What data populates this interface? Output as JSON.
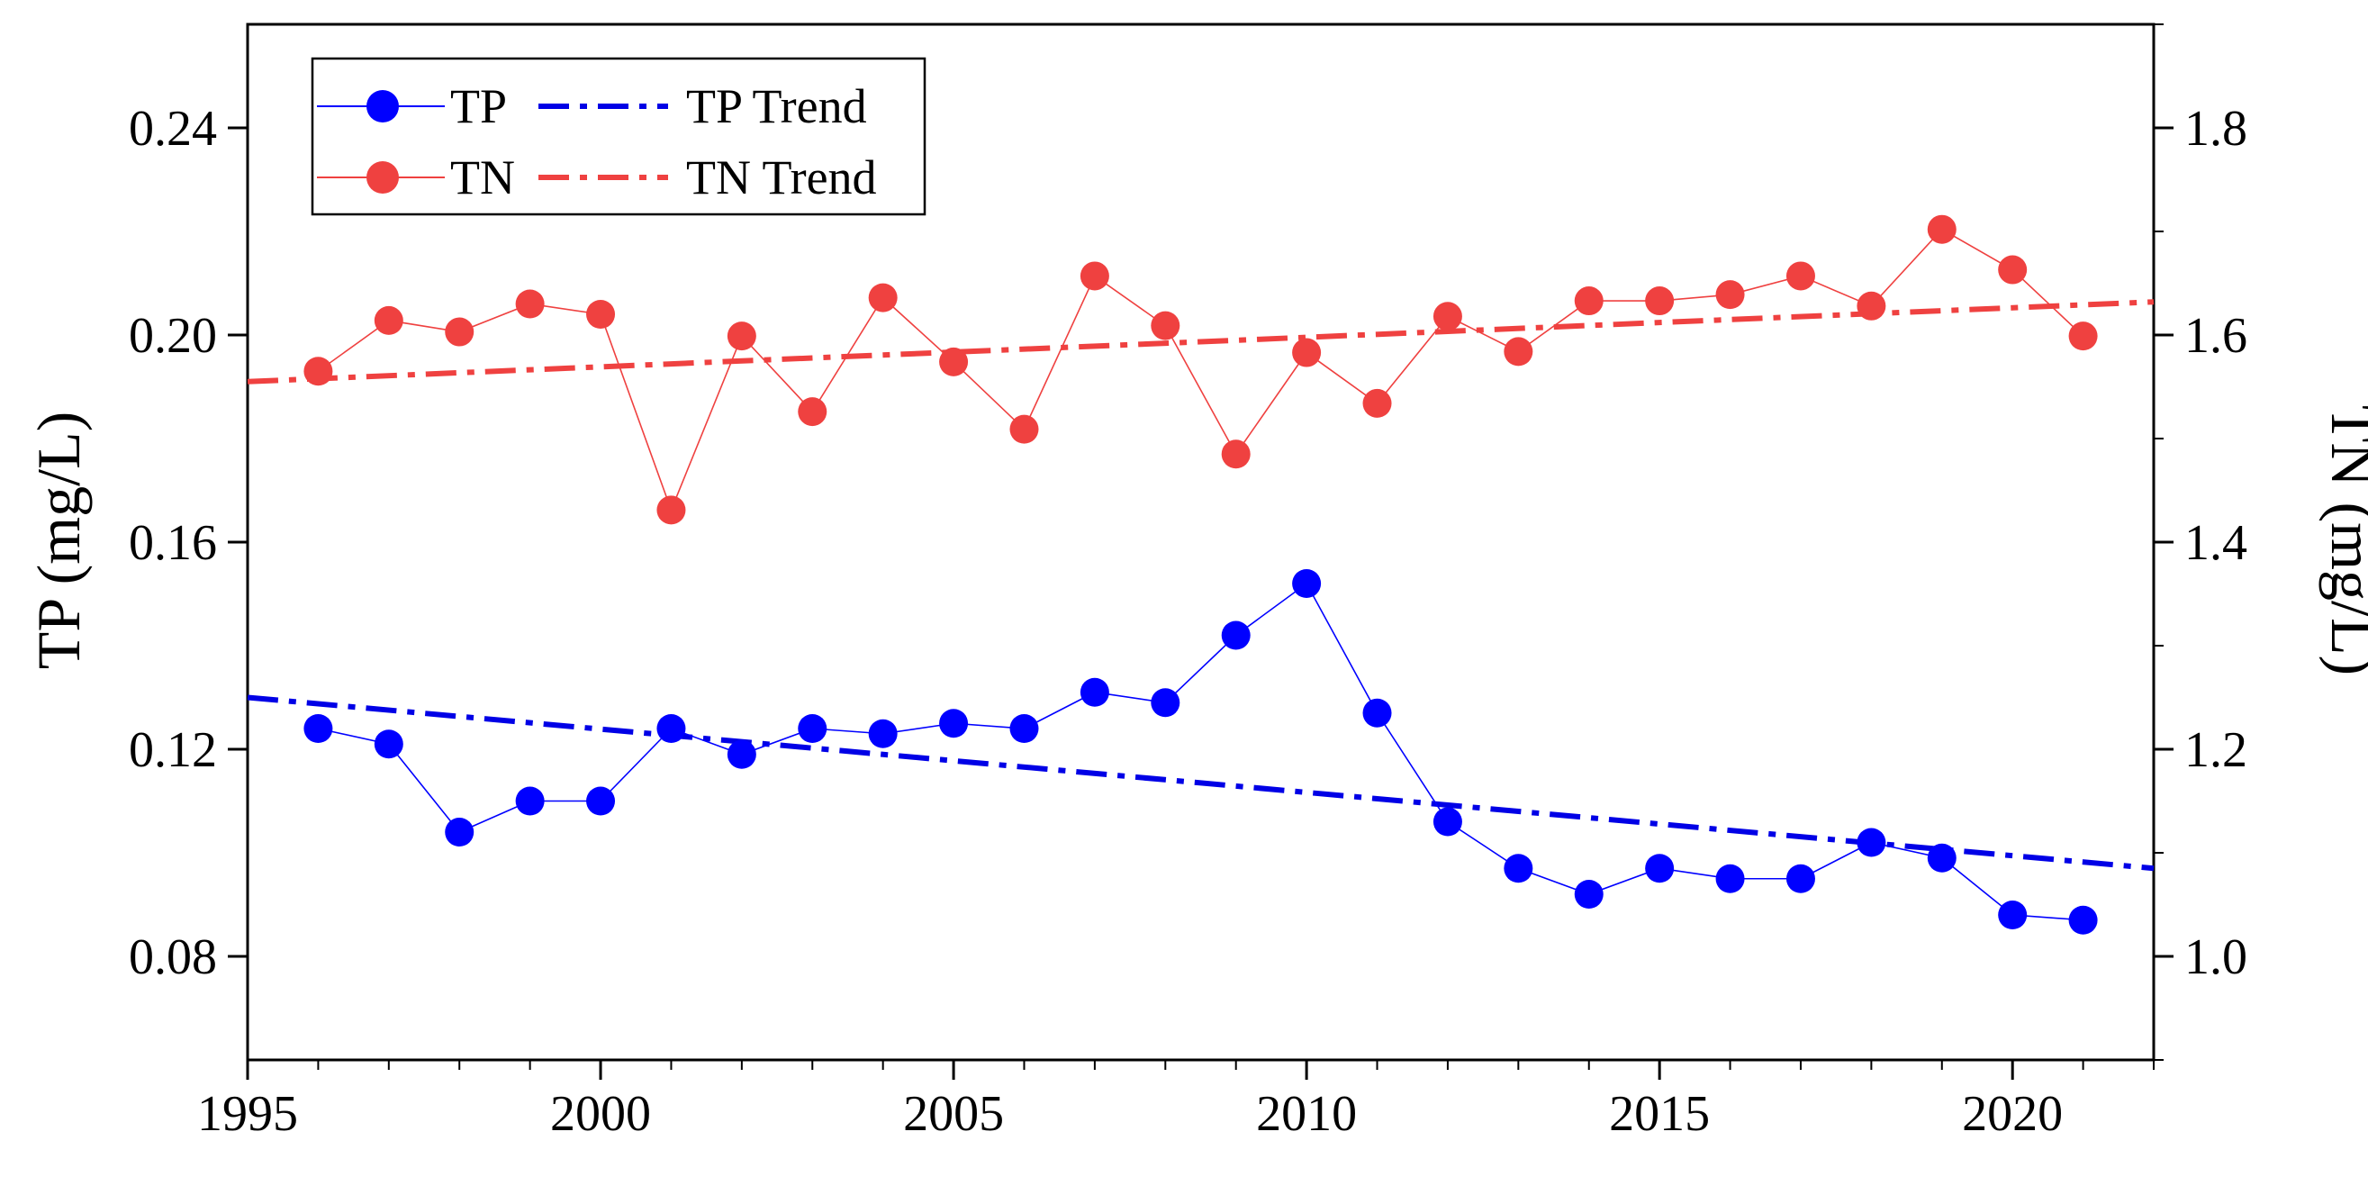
{
  "chart_data": {
    "type": "line",
    "x": [
      1996,
      1997,
      1998,
      1999,
      2000,
      2001,
      2002,
      2003,
      2004,
      2005,
      2006,
      2007,
      2008,
      2009,
      2010,
      2011,
      2012,
      2013,
      2014,
      2015,
      2016,
      2017,
      2018,
      2019,
      2020,
      2021
    ],
    "xlim": [
      1995,
      2022
    ],
    "xticks": [
      1995,
      2000,
      2005,
      2010,
      2015,
      2020
    ],
    "xtick_labels": [
      "1995",
      "2000",
      "2005",
      "2010",
      "2015",
      "2020"
    ],
    "ylabel_left": "TP (mg/L)",
    "ylim_left": [
      0.06,
      0.26
    ],
    "yticks_left": [
      0.08,
      0.12,
      0.16,
      0.2,
      0.24
    ],
    "ytick_labels_left": [
      "0.08",
      "0.12",
      "0.16",
      "0.20",
      "0.24"
    ],
    "ylabel_right": "TN (mg/L)",
    "ylim_right": [
      0.9,
      1.9
    ],
    "yticks_right": [
      1.0,
      1.2,
      1.4,
      1.6,
      1.8
    ],
    "ytick_labels_right": [
      "1.0",
      "1.2",
      "1.4",
      "1.6",
      "1.8"
    ],
    "series": [
      {
        "name": "TP",
        "axis": "left",
        "color": "#0000ff",
        "values": [
          0.124,
          0.121,
          0.104,
          0.11,
          0.11,
          0.124,
          0.119,
          0.124,
          0.123,
          0.125,
          0.124,
          0.131,
          0.129,
          0.142,
          0.152,
          0.127,
          0.106,
          0.097,
          0.092,
          0.097,
          0.095,
          0.095,
          0.102,
          0.099,
          0.088,
          0.087
        ]
      },
      {
        "name": "TN",
        "axis": "right",
        "color": "#ef4140",
        "values": [
          1.565,
          1.614,
          1.603,
          1.63,
          1.62,
          1.431,
          1.599,
          1.526,
          1.636,
          1.574,
          1.509,
          1.657,
          1.609,
          1.485,
          1.583,
          1.534,
          1.618,
          1.584,
          1.633,
          1.633,
          1.639,
          1.657,
          1.628,
          1.702,
          1.663,
          1.599
        ]
      }
    ],
    "trends": [
      {
        "name": "TP Trend",
        "axis": "left",
        "color": "#0000e6",
        "x": [
          1995,
          2022
        ],
        "values": [
          0.13,
          0.097
        ]
      },
      {
        "name": "TN Trend",
        "axis": "right",
        "color": "#ef4140",
        "x": [
          1995,
          2022
        ],
        "values": [
          1.555,
          1.632
        ]
      }
    ],
    "legend": {
      "placement": "top-left",
      "entries": [
        "TP",
        "TP Trend",
        "TN",
        "TN Trend"
      ]
    }
  }
}
